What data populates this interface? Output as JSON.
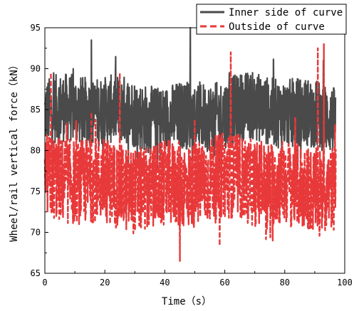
{
  "chart_data": {
    "type": "line",
    "xlabel": "Time（s）",
    "ylabel": "Wheel/rail vertical force（kN）",
    "xlim": [
      0,
      100
    ],
    "ylim": [
      65,
      95
    ],
    "x_ticks": [
      0,
      20,
      40,
      60,
      80,
      100
    ],
    "y_ticks": [
      65,
      70,
      75,
      80,
      85,
      90,
      95
    ],
    "grid": false,
    "legend_position": "top-right",
    "time_range": [
      0,
      97
    ],
    "series": [
      {
        "name": "Inner side of curve",
        "color": "#4a4a4a",
        "style": "solid",
        "mean": 84.5,
        "typical_range": [
          80,
          88
        ],
        "min": 77,
        "max": 95,
        "peaks": [
          {
            "x": 15.5,
            "y": 93.5
          },
          {
            "x": 48.5,
            "y": 95
          },
          {
            "x": 61.5,
            "y": 89.5
          },
          {
            "x": 91,
            "y": 87.5
          }
        ]
      },
      {
        "name": "Outside of curve",
        "color": "#e8393a",
        "style": "dashed",
        "mean": 76,
        "typical_range": [
          71,
          81
        ],
        "min": 66.5,
        "max": 93,
        "peaks": [
          {
            "x": 2,
            "y": 89.5
          },
          {
            "x": 25,
            "y": 89.5
          },
          {
            "x": 45,
            "y": 66.5
          },
          {
            "x": 62,
            "y": 92
          },
          {
            "x": 76,
            "y": 69
          },
          {
            "x": 91,
            "y": 92.5
          },
          {
            "x": 93,
            "y": 93
          }
        ]
      }
    ]
  }
}
